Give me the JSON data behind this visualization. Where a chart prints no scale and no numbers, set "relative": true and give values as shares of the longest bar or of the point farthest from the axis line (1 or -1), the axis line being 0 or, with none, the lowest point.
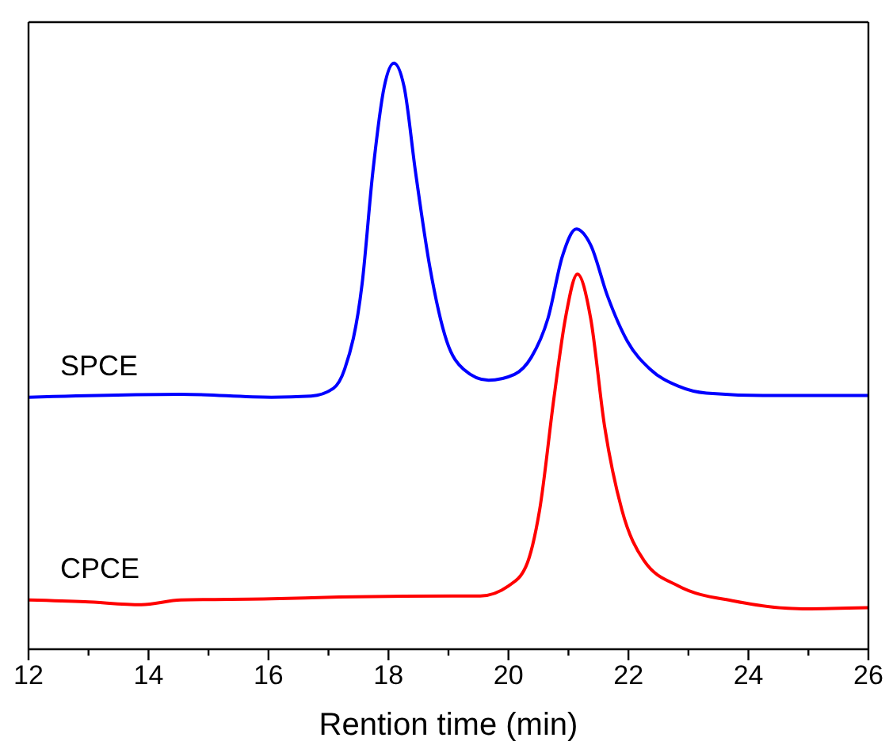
{
  "chart_data": {
    "type": "line",
    "xlabel": "Rention time (min)",
    "relative": true,
    "legend": false,
    "marker": "none",
    "line_style": "solid",
    "xlim": [
      12,
      26
    ],
    "xticks": [
      12,
      {
        "value": 13,
        "label": null
      },
      14,
      {
        "value": 15,
        "label": null
      },
      16,
      {
        "value": 17,
        "label": null
      },
      18,
      {
        "value": 19,
        "label": null
      },
      20,
      {
        "value": 21,
        "label": null
      },
      22,
      {
        "value": 23,
        "label": null
      },
      24,
      {
        "value": 25,
        "label": null
      },
      26
    ],
    "series": [
      {
        "name": "SPCE",
        "color": "#0000ff",
        "x": [
          12,
          14.54,
          16.05,
          16.71,
          17.08,
          17.27,
          17.56,
          17.74,
          17.93,
          18.09,
          18.26,
          18.45,
          18.69,
          18.97,
          19.25,
          19.67,
          20.1,
          20.38,
          20.66,
          20.9,
          21.13,
          21.37,
          21.65,
          21.98,
          22.36,
          22.83,
          23.3,
          24.24,
          26
        ],
        "values": [
          0.43,
          0.435,
          0.43,
          0.432,
          0.445,
          0.478,
          0.623,
          0.815,
          0.96,
          1,
          0.96,
          0.815,
          0.652,
          0.526,
          0.478,
          0.459,
          0.469,
          0.498,
          0.565,
          0.671,
          0.717,
          0.69,
          0.603,
          0.526,
          0.478,
          0.449,
          0.437,
          0.433,
          0.433
        ]
      },
      {
        "name": "CPCE",
        "color": "#ff0000",
        "x": [
          12,
          12.94,
          13.88,
          14.54,
          16.05,
          17.18,
          19.06,
          19.53,
          20,
          20.29,
          20.52,
          20.76,
          20.95,
          21.15,
          21.37,
          21.6,
          21.89,
          22.26,
          22.83,
          23.77,
          24.9,
          26
        ],
        "values": [
          0.084,
          0.081,
          0.076,
          0.084,
          0.086,
          0.089,
          0.091,
          0.091,
          0.108,
          0.141,
          0.238,
          0.43,
          0.565,
          0.64,
          0.565,
          0.382,
          0.238,
          0.151,
          0.108,
          0.082,
          0.069,
          0.071
        ]
      }
    ]
  }
}
